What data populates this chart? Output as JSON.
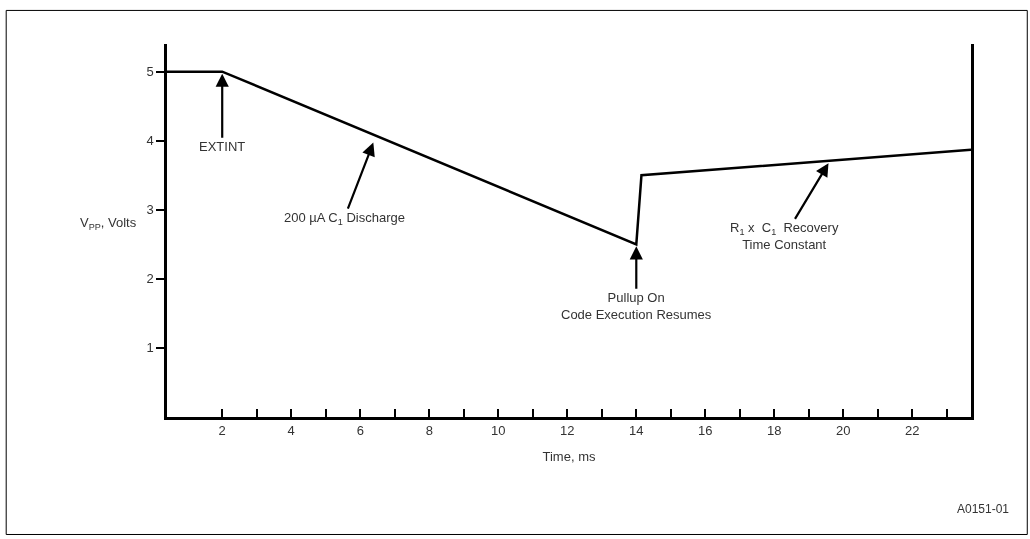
{
  "chart_data": {
    "type": "line",
    "xlabel": "Time, ms",
    "ylabel": "V$_{PP}$, Volts",
    "x": [
      0.4,
      2,
      14,
      14.15,
      23.7
    ],
    "series": [
      {
        "color": "#000000",
        "values": [
          5,
          5,
          2.5,
          3.5,
          3.87
        ]
      }
    ],
    "xlim": [
      0.4,
      23.7
    ],
    "xticks": [
      2,
      {
        "value": 3,
        "label": null
      },
      4,
      {
        "value": 5,
        "label": null
      },
      6,
      {
        "value": 7,
        "label": null
      },
      8,
      {
        "value": 9,
        "label": null
      },
      10,
      {
        "value": 11,
        "label": null
      },
      12,
      {
        "value": 13,
        "label": null
      },
      14,
      {
        "value": 15,
        "label": null
      },
      16,
      {
        "value": 17,
        "label": null
      },
      18,
      {
        "value": 19,
        "label": null
      },
      20,
      {
        "value": 21,
        "label": null
      },
      22,
      {
        "value": 23,
        "label": null
      }
    ],
    "ylim": [
      0,
      5.4
    ],
    "yticks": [
      1,
      2,
      3,
      4,
      5
    ],
    "legend": false,
    "marker": "none",
    "line_style": "solid",
    "annotations": [
      {
        "text": "EXTINT",
        "x": 2,
        "y": 5
      },
      {
        "text": "200 µA C$_{1}$ Discharge",
        "x": 6.4,
        "y": 4.0
      },
      {
        "text": "Pullup On\nCode Execution Resumes",
        "x": 14,
        "y": 2.5
      },
      {
        "text": "R$_{1}$ x  C$_{1}$  Recovery\nTime Constant",
        "x": 19.6,
        "y": 3.7
      },
      "A0151-01"
    ]
  }
}
